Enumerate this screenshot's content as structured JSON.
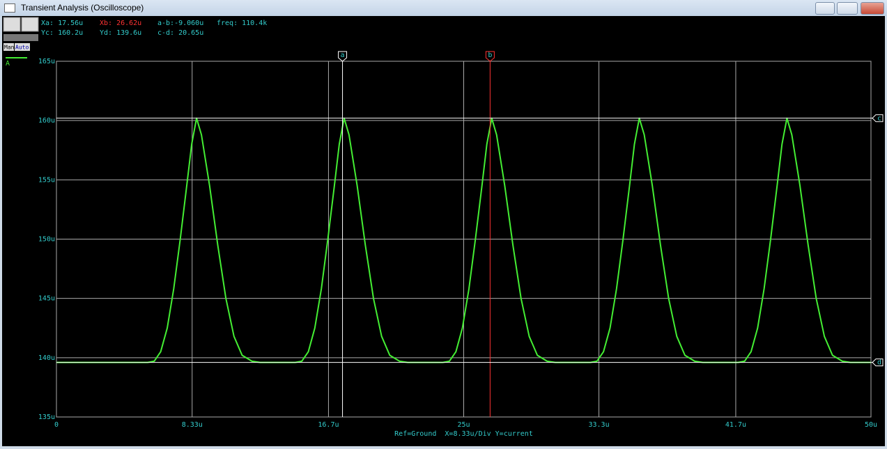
{
  "window": {
    "title": "Transient Analysis (Oscilloscope)"
  },
  "toolbar": {
    "manual": "Man",
    "auto": "Auto"
  },
  "readouts": [
    {
      "text": "Xa: 17.56u",
      "color": "#33cccc"
    },
    {
      "text": "Xb: 26.62u",
      "color": "#ff3333"
    },
    {
      "text": "a-b:-9.060u",
      "color": "#33cccc"
    },
    {
      "text": "freq: 110.4k",
      "color": "#33cccc"
    },
    {
      "text": "Yc: 160.2u",
      "color": "#33cccc"
    },
    {
      "text": "Yd: 139.6u",
      "color": "#33cccc"
    },
    {
      "text": "c-d: 20.65u",
      "color": "#33cccc"
    }
  ],
  "chart_data": {
    "type": "line",
    "xlabel": "Ref=Ground  X=8.33u/Div Y=current",
    "grid": true,
    "xlim": [
      0,
      50
    ],
    "xticks": [
      0,
      {
        "value": 8.33,
        "label": "8.33u"
      },
      {
        "value": 16.7,
        "label": "16.7u"
      },
      {
        "value": 25,
        "label": "25u"
      },
      {
        "value": 33.3,
        "label": "33.3u"
      },
      {
        "value": 41.7,
        "label": "41.7u"
      },
      {
        "value": 50,
        "label": "50u"
      }
    ],
    "ylim": [
      135,
      165
    ],
    "yticks": [
      {
        "value": 135,
        "label": "135u"
      },
      {
        "value": 140,
        "label": "140u"
      },
      {
        "value": 145,
        "label": "145u"
      },
      {
        "value": 150,
        "label": "150u"
      },
      {
        "value": 155,
        "label": "155u"
      },
      {
        "value": 160,
        "label": "160u"
      },
      {
        "value": 165,
        "label": "165u"
      }
    ],
    "series": [
      {
        "name": "A",
        "color": "#44ee33",
        "x": [
          0,
          5.6,
          6.0,
          6.4,
          6.8,
          7.2,
          7.6,
          8.0,
          8.3,
          8.6,
          8.9,
          9.4,
          9.9,
          10.4,
          10.9,
          11.4,
          12.0,
          12.5,
          14.66,
          15.06,
          15.46,
          15.86,
          16.26,
          16.66,
          17.06,
          17.36,
          17.66,
          17.96,
          18.46,
          18.96,
          19.46,
          19.96,
          20.46,
          21.06,
          21.56,
          23.72,
          24.12,
          24.52,
          24.92,
          25.32,
          25.72,
          26.12,
          26.42,
          26.72,
          27.02,
          27.52,
          28.02,
          28.52,
          29.02,
          29.52,
          30.12,
          30.62,
          32.78,
          33.18,
          33.58,
          33.98,
          34.38,
          34.78,
          35.18,
          35.48,
          35.78,
          36.08,
          36.58,
          37.08,
          37.58,
          38.08,
          38.58,
          39.18,
          39.68,
          41.84,
          42.24,
          42.64,
          43.04,
          43.44,
          43.84,
          44.24,
          44.54,
          44.84,
          45.14,
          45.64,
          46.14,
          46.64,
          47.14,
          47.64,
          48.24,
          48.74,
          50
        ],
        "values": [
          139.6,
          139.6,
          139.7,
          140.5,
          142.5,
          145.8,
          150,
          154.5,
          158,
          160.2,
          158.8,
          154.5,
          149.5,
          145,
          141.8,
          140.2,
          139.7,
          139.6,
          139.6,
          139.7,
          140.5,
          142.5,
          145.8,
          150,
          154.5,
          158,
          160.2,
          158.8,
          154.5,
          149.5,
          145,
          141.8,
          140.2,
          139.7,
          139.6,
          139.6,
          139.7,
          140.5,
          142.5,
          145.8,
          150,
          154.5,
          158,
          160.2,
          158.8,
          154.5,
          149.5,
          145,
          141.8,
          140.2,
          139.7,
          139.6,
          139.6,
          139.7,
          140.5,
          142.5,
          145.8,
          150,
          154.5,
          158,
          160.2,
          158.8,
          154.5,
          149.5,
          145,
          141.8,
          140.2,
          139.7,
          139.6,
          139.6,
          139.7,
          140.5,
          142.5,
          145.8,
          150,
          154.5,
          158,
          160.2,
          158.8,
          154.5,
          149.5,
          145,
          141.8,
          140.2,
          139.7,
          139.6,
          139.6
        ]
      }
    ],
    "cursors": [
      {
        "label": "a",
        "x": 17.56,
        "color": "#ffffff"
      },
      {
        "label": "b",
        "x": 26.62,
        "color": "#ff3333"
      },
      {
        "label": "c",
        "y": 160.2,
        "color": "#ffffff"
      },
      {
        "label": "d",
        "y": 139.6,
        "color": "#ffffff"
      }
    ]
  }
}
